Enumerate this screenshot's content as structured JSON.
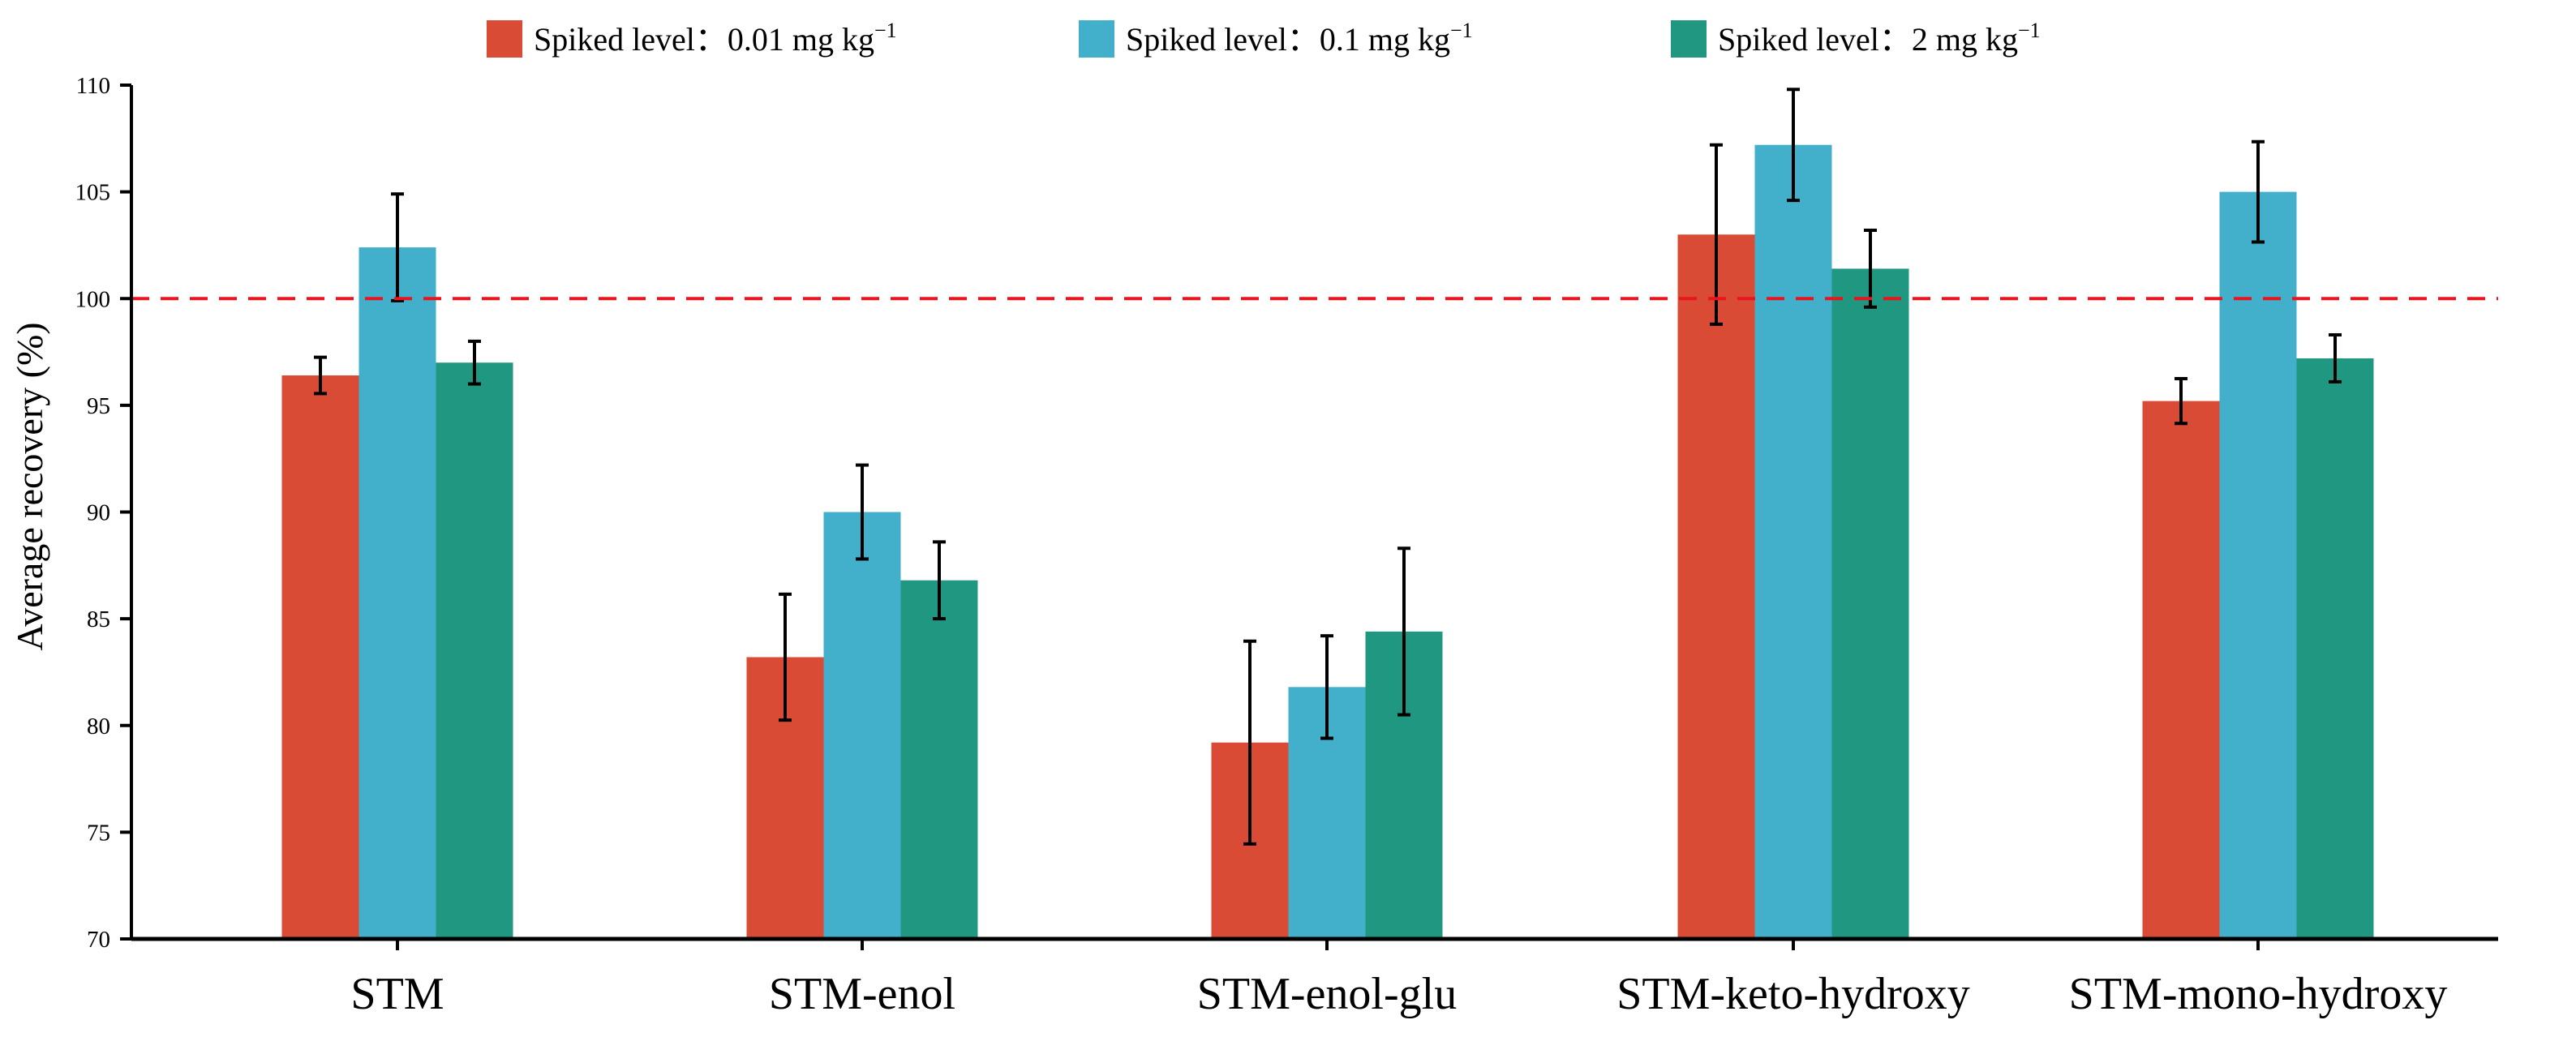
{
  "chart_data": {
    "type": "bar",
    "title": "",
    "xlabel": "",
    "ylabel": "Average recovery (%)",
    "ylim": [
      70,
      110
    ],
    "yticks": [
      70,
      75,
      80,
      85,
      90,
      95,
      100,
      105,
      110
    ],
    "grid": false,
    "legend_position": "top-center",
    "categories": [
      "STM",
      "STM-enol",
      "STM-enol-glu",
      "STM-keto-hydroxy",
      "STM-mono-hydroxy"
    ],
    "series": [
      {
        "name": "Spiked level：0.01 mg kg",
        "superscript": "−1",
        "color": "#D94B35",
        "values": [
          96.4,
          83.2,
          79.2,
          103.0,
          95.2
        ],
        "errors": [
          0.85,
          2.95,
          4.75,
          4.2,
          1.05
        ]
      },
      {
        "name": "Spiked level：0.1 mg kg",
        "superscript": "−1",
        "color": "#43B0CB",
        "values": [
          102.4,
          90.0,
          81.8,
          107.2,
          105.0
        ],
        "errors": [
          2.5,
          2.2,
          2.4,
          2.6,
          2.35
        ]
      },
      {
        "name": "Spiked level：2 mg kg",
        "superscript": "−1",
        "color": "#209881",
        "values": [
          97.0,
          86.8,
          84.4,
          101.4,
          97.2
        ],
        "errors": [
          1.0,
          1.8,
          3.9,
          1.8,
          1.1
        ]
      }
    ],
    "reference_line": {
      "value": 100,
      "color": "#E8141E",
      "style": "dashed"
    }
  }
}
